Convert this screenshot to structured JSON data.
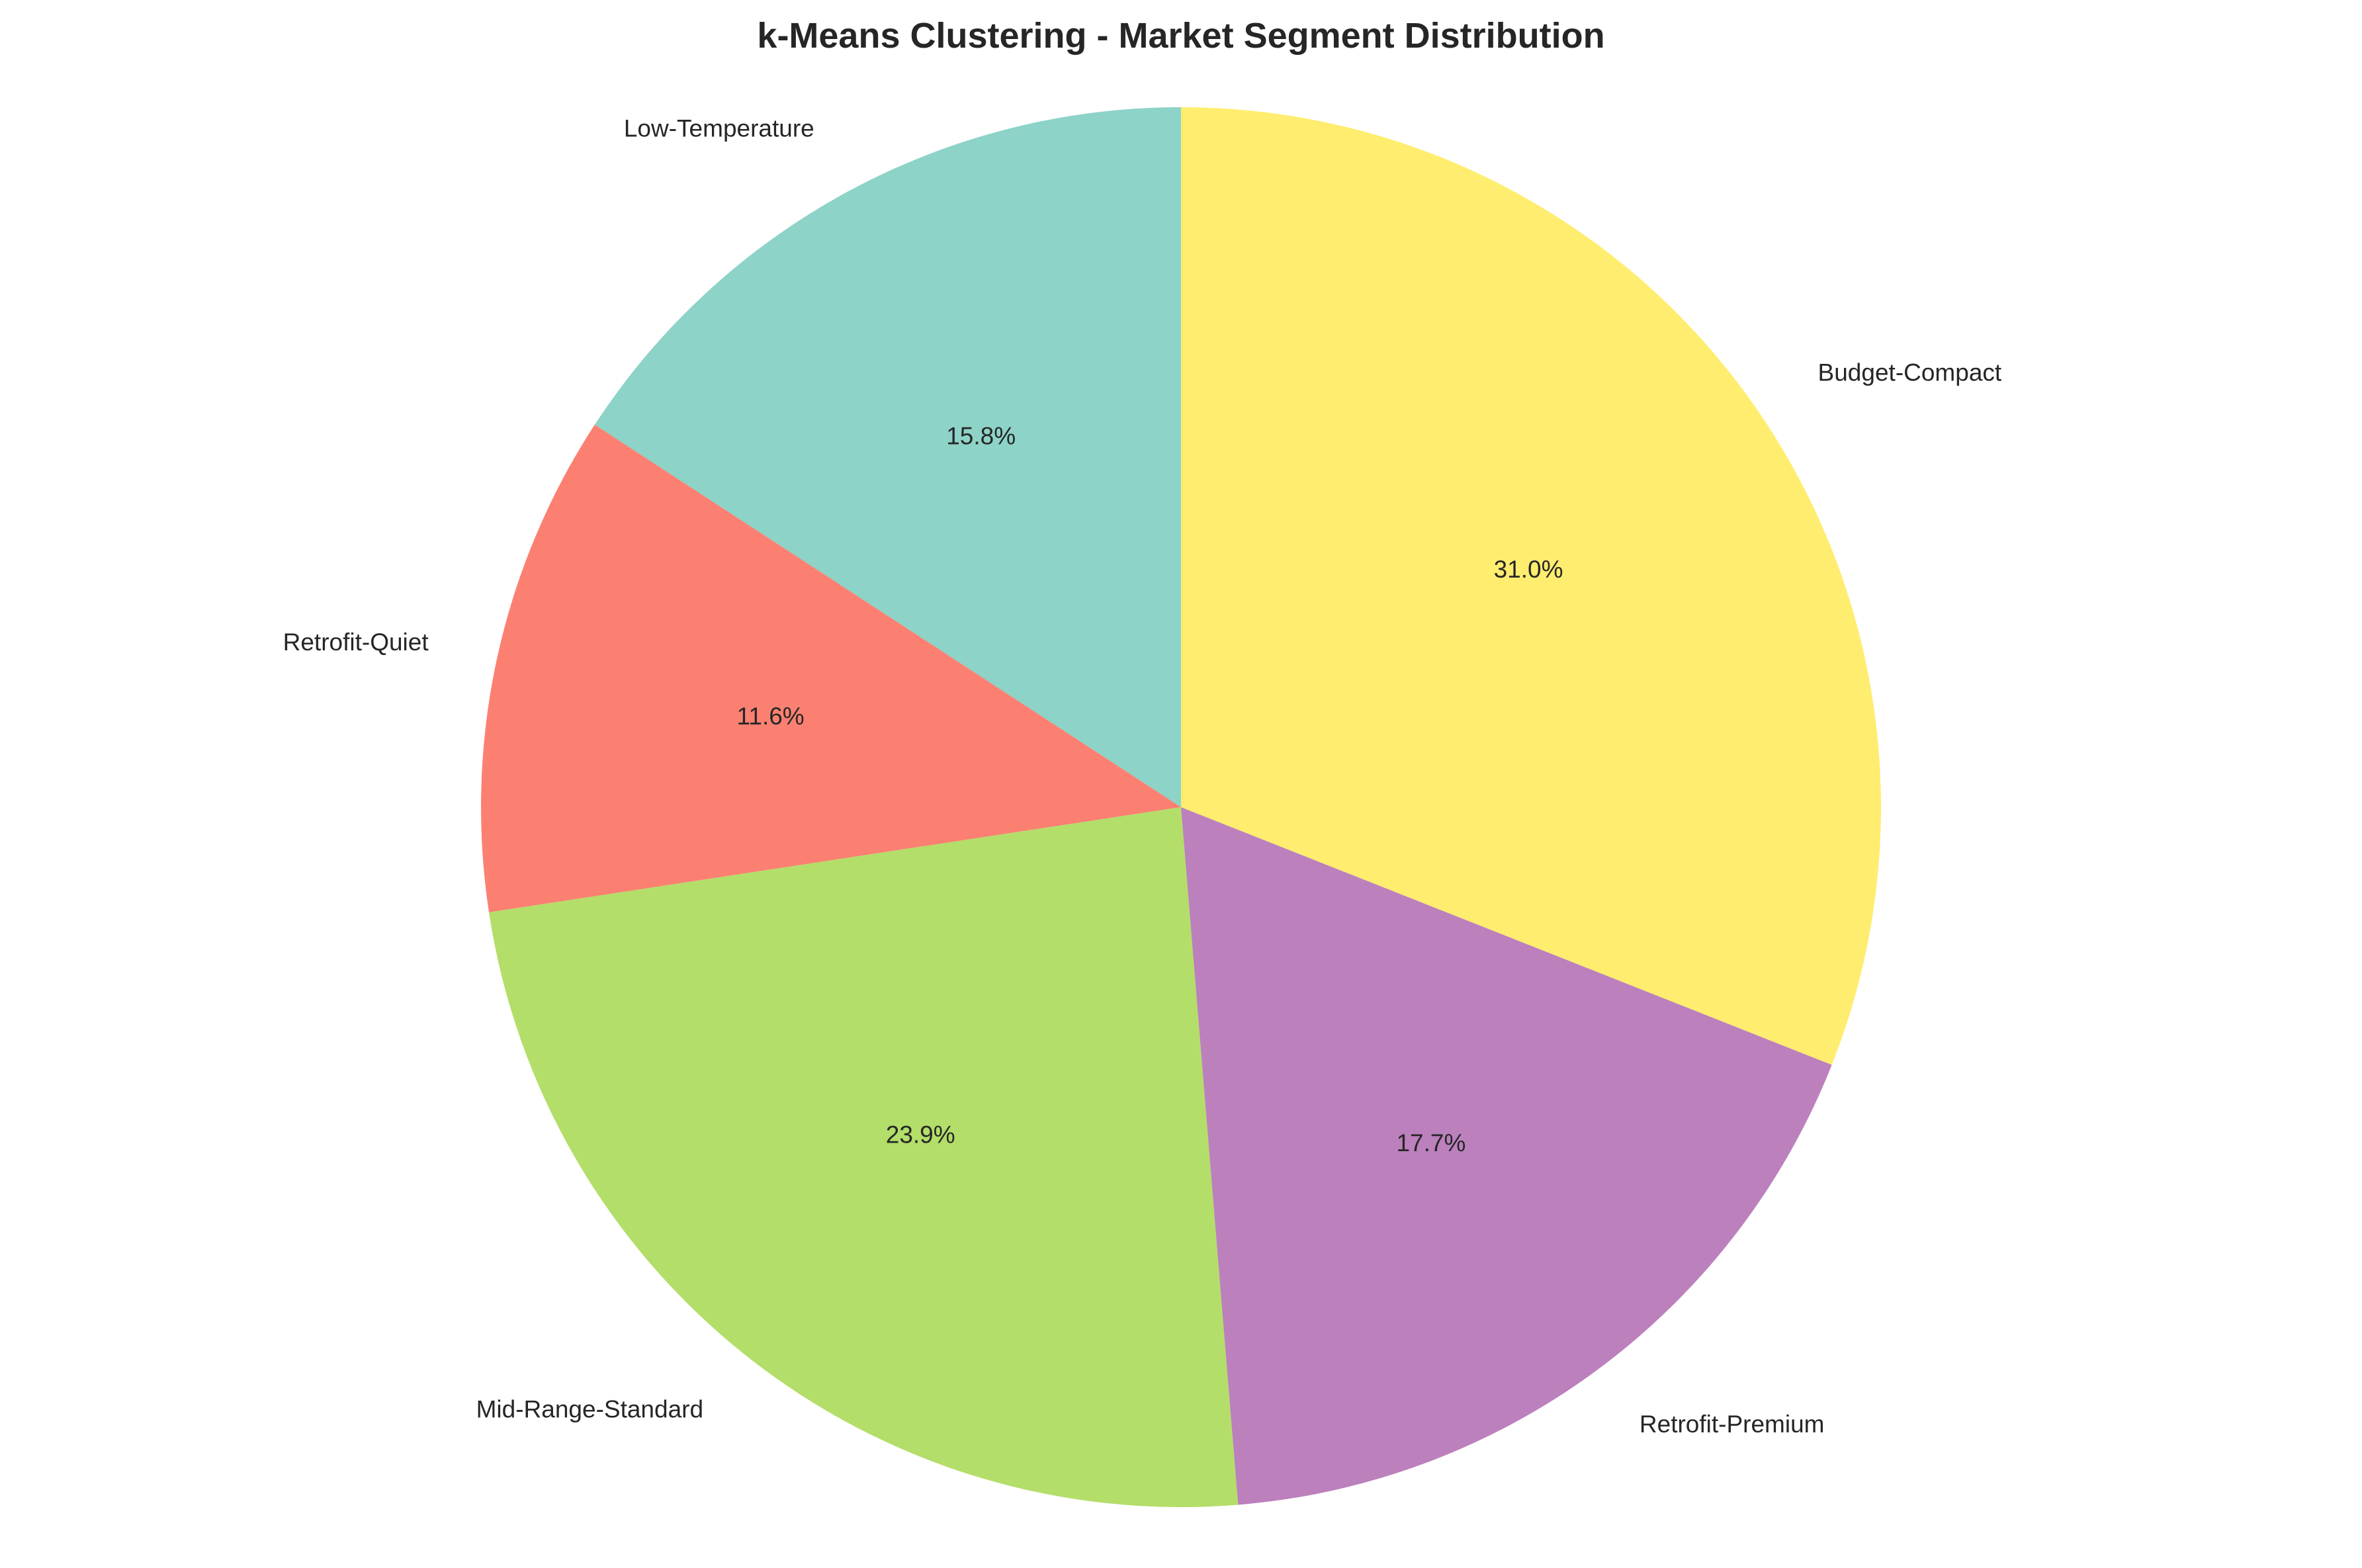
{
  "chart_data": {
    "type": "pie",
    "title": "k-Means Clustering - Market Segment Distribution",
    "start_angle_deg": 90,
    "direction": "counterclockwise",
    "slices": [
      {
        "label": "Low-Temperature",
        "value": 15.8,
        "pct_label": "15.8%",
        "color": "#8dd3c7"
      },
      {
        "label": "Retrofit-Quiet",
        "value": 11.6,
        "pct_label": "11.6%",
        "color": "#fb8072"
      },
      {
        "label": "Mid-Range-Standard",
        "value": 23.9,
        "pct_label": "23.9%",
        "color": "#b3de69"
      },
      {
        "label": "Retrofit-Premium",
        "value": 17.7,
        "pct_label": "17.7%",
        "color": "#bc80bd"
      },
      {
        "label": "Budget-Compact",
        "value": 31.0,
        "pct_label": "31.0%",
        "color": "#ffed6f"
      }
    ]
  }
}
